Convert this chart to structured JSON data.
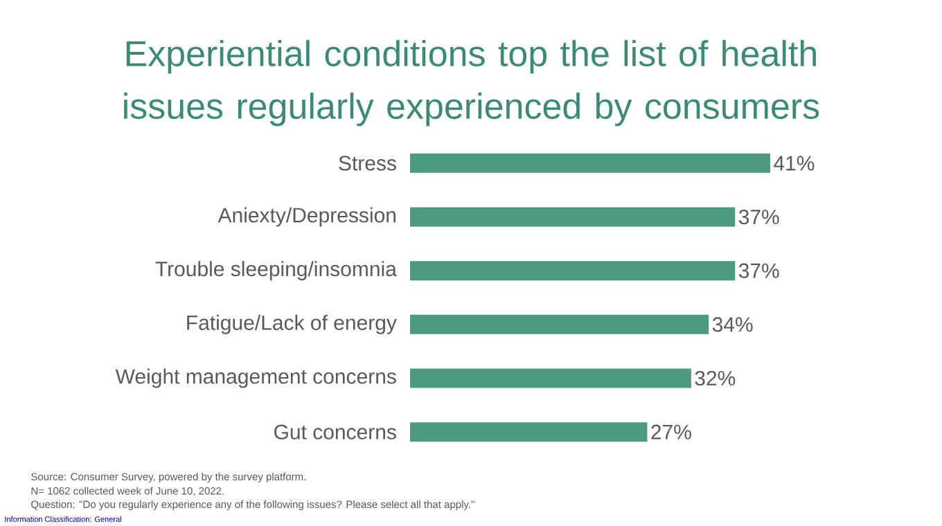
{
  "chart_data": {
    "type": "bar",
    "orientation": "horizontal",
    "title": "Experiential conditions top the list of health issues regularly experienced by consumers",
    "categories": [
      "Stress",
      "Aniexty/Depression",
      "Trouble sleeping/insomnia",
      "Fatigue/Lack of energy",
      "Weight management concerns",
      "Gut concerns"
    ],
    "values": [
      41,
      37,
      37,
      34,
      32,
      27
    ],
    "value_labels": [
      "41%",
      "37%",
      "37%",
      "34%",
      "32%",
      "27%"
    ],
    "color": "#4e9a80",
    "annotations": [
      "Source: Consumer Survey, powered by the survey platform.",
      "N= 1062 collected week of June 10, 2022.",
      "Question: \"Do you regularly experience any of the following issues? Please select all that apply.\"",
      "Information Classification: General"
    ]
  }
}
